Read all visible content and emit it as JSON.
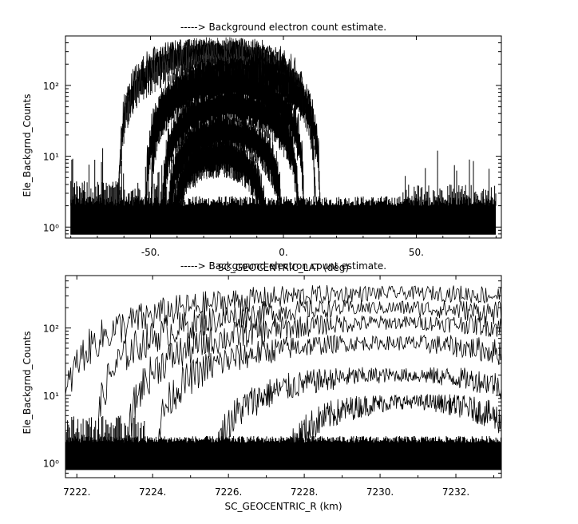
{
  "chart_data": [
    {
      "type": "line",
      "title": "-----> Background electron count estimate.",
      "xlabel": "SC_GEOCENTRIC_LAT (deg)",
      "ylabel": "Ele_Backgrnd_Counts",
      "xlim": [
        -82,
        82
      ],
      "ylim": [
        0.7,
        500
      ],
      "yscale": "log",
      "x_tick_labels": [
        "-50.",
        "0.",
        "50."
      ],
      "x_ticks": [
        -50,
        0,
        50
      ],
      "y_tick_labels": [
        "10⁰",
        "10¹",
        "10²"
      ],
      "y_ticks": [
        1,
        10,
        100
      ],
      "grid": false,
      "series": [
        {
          "center": -25,
          "half_width": 37,
          "peak": 330
        },
        {
          "center": -18,
          "half_width": 32,
          "peak": 180
        },
        {
          "center": -22,
          "half_width": 30,
          "peak": 120
        },
        {
          "center": -20,
          "half_width": 26,
          "peak": 60
        },
        {
          "center": -22,
          "half_width": 22,
          "peak": 25
        },
        {
          "center": -24,
          "half_width": 18,
          "peak": 12
        }
      ],
      "noise_floor": {
        "base": 2,
        "high_latitude_bursts": [
          [
            -75,
            4
          ],
          [
            -68,
            13
          ],
          [
            58,
            12
          ],
          [
            70,
            9
          ]
        ]
      }
    },
    {
      "type": "line",
      "title": "-----> Background electron count estimate.",
      "xlabel": "SC_GEOCENTRIC_R (km)",
      "ylabel": "Ele_Backgrnd_Counts",
      "xlim": [
        7221.7,
        7233.2
      ],
      "ylim": [
        0.6,
        600
      ],
      "yscale": "log",
      "x_tick_labels": [
        "7222.",
        "7224.",
        "7226.",
        "7228.",
        "7230.",
        "7232."
      ],
      "x_ticks": [
        7222,
        7224,
        7226,
        7228,
        7230,
        7232
      ],
      "y_tick_labels": [
        "10⁰",
        "10¹",
        "10²"
      ],
      "y_ticks": [
        1,
        10,
        100
      ],
      "grid": false,
      "series": [
        {
          "center": 7230.6,
          "half_width": 9.0,
          "peak": 330
        },
        {
          "center": 7230.0,
          "half_width": 7.5,
          "peak": 200
        },
        {
          "center": 7230.5,
          "half_width": 7.2,
          "peak": 120
        },
        {
          "center": 7230.0,
          "half_width": 6.0,
          "peak": 60
        },
        {
          "center": 7230.5,
          "half_width": 5.0,
          "peak": 20
        },
        {
          "center": 7230.8,
          "half_width": 3.5,
          "peak": 8
        }
      ],
      "noise_floor": {
        "base": 2,
        "start": 7221.7
      }
    }
  ]
}
